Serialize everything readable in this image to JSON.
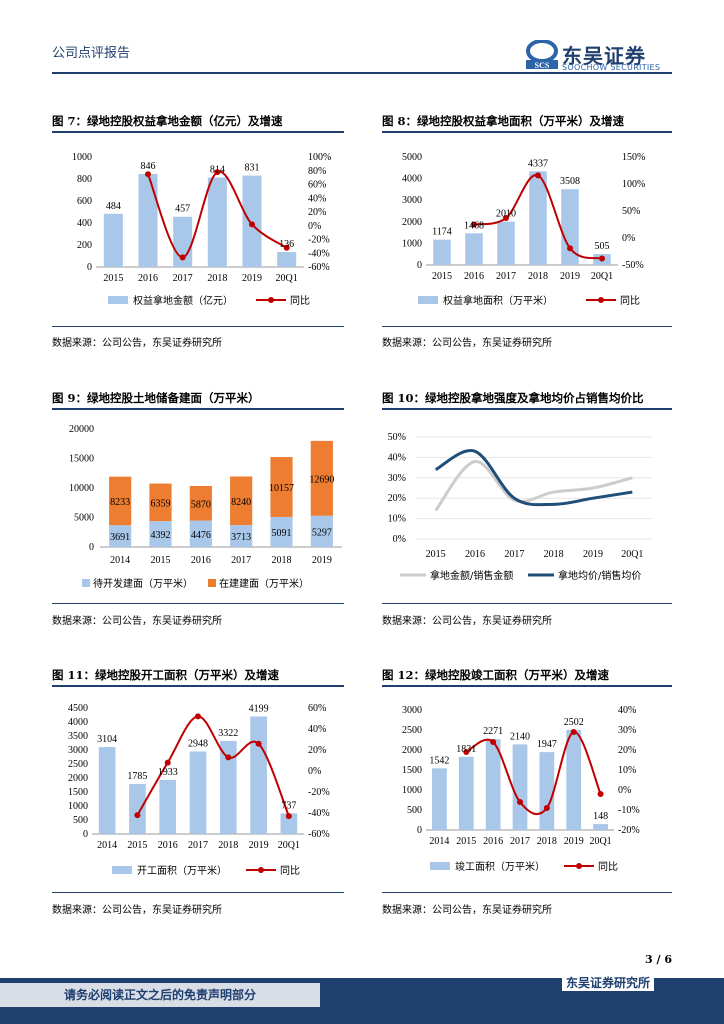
{
  "header": {
    "report_type": "公司点评报告",
    "brand_cn": "东吴证券",
    "brand_en": "SOOCHOW SECURITIES",
    "logo_abbr": "SCS"
  },
  "figures": [
    {
      "title": "图 7：绿地控股权益拿地金额（亿元）及增速",
      "source": "数据来源：公司公告，东吴证券研究所",
      "chart_data": {
        "type": "bar",
        "categories": [
          "2015",
          "2016",
          "2017",
          "2018",
          "2019",
          "20Q1"
        ],
        "series": [
          {
            "name": "权益拿地金额（亿元）",
            "type": "bar",
            "values": [
              484,
              846,
              457,
              814,
              831,
              136
            ]
          },
          {
            "name": "同比",
            "type": "line",
            "values": [
              null,
              75,
              -46,
              78,
              2,
              -32
            ]
          }
        ],
        "ylim": [
          0,
          1000
        ],
        "yticks": [
          0,
          200,
          400,
          600,
          800,
          1000
        ],
        "y2lim": [
          -60,
          100
        ],
        "y2ticks": [
          -60,
          -40,
          -20,
          0,
          20,
          40,
          60,
          80,
          100
        ],
        "data_labels": [
          "484",
          "846",
          "457",
          "814",
          "831",
          "136"
        ]
      }
    },
    {
      "title": "图 8：绿地控股权益拿地面积（万平米）及增速",
      "source": "数据来源：公司公告，东吴证券研究所",
      "chart_data": {
        "type": "bar",
        "categories": [
          "2015",
          "2016",
          "2017",
          "2018",
          "2019",
          "20Q1"
        ],
        "series": [
          {
            "name": "权益拿地面积（万平米）",
            "type": "bar",
            "values": [
              1174,
              1468,
              2010,
              4337,
              3508,
              505
            ]
          },
          {
            "name": "同比",
            "type": "line",
            "values": [
              null,
              25,
              37,
              116,
              -19,
              -38
            ]
          }
        ],
        "ylim": [
          0,
          5000
        ],
        "yticks": [
          0,
          1000,
          2000,
          3000,
          4000,
          5000
        ],
        "y2lim": [
          -50,
          150
        ],
        "y2ticks": [
          -50,
          0,
          50,
          100,
          150
        ],
        "data_labels": [
          "1174",
          "1468",
          "2010",
          "4337",
          "3508",
          "505"
        ]
      }
    },
    {
      "title": "图 9：绿地控股土地储备建面（万平米）",
      "source": "数据来源：公司公告，东吴证券研究所",
      "chart_data": {
        "type": "stacked-bar",
        "categories": [
          "2014",
          "2015",
          "2016",
          "2017",
          "2018",
          "2019"
        ],
        "series": [
          {
            "name": "待开发建面（万平米）",
            "values": [
              3691,
              4392,
              4476,
              3713,
              5091,
              5297
            ]
          },
          {
            "name": "在建建面（万平米）",
            "values": [
              8233,
              6359,
              5870,
              8240,
              10157,
              12690
            ]
          }
        ],
        "ylim": [
          0,
          20000
        ],
        "yticks": [
          0,
          5000,
          10000,
          15000,
          20000
        ]
      }
    },
    {
      "title": "图 10：绿地控股拿地强度及拿地均价占销售均价比",
      "source": "数据来源：公司公告，东吴证券研究所",
      "chart_data": {
        "type": "line",
        "categories": [
          "2015",
          "2016",
          "2017",
          "2018",
          "2019",
          "20Q1"
        ],
        "series": [
          {
            "name": "拿地金额/销售金额",
            "values": [
              14,
              38,
              19,
              23,
              25,
              30
            ]
          },
          {
            "name": "拿地均价/销售均价",
            "values": [
              34,
              43,
              20,
              17,
              20,
              23
            ]
          }
        ],
        "ylim": [
          0,
          50
        ],
        "yticks": [
          0,
          10,
          20,
          30,
          40,
          50
        ]
      }
    },
    {
      "title": "图 11：绿地控股开工面积（万平米）及增速",
      "source": "数据来源：公司公告，东吴证券研究所",
      "chart_data": {
        "type": "bar",
        "categories": [
          "2014",
          "2015",
          "2016",
          "2017",
          "2018",
          "2019",
          "20Q1"
        ],
        "series": [
          {
            "name": "开工面积（万平米）",
            "type": "bar",
            "values": [
              3104,
              1785,
              1933,
              2948,
              3322,
              4199,
              737
            ]
          },
          {
            "name": "同比",
            "type": "line",
            "values": [
              null,
              -42,
              8,
              52,
              13,
              26,
              -43
            ]
          }
        ],
        "ylim": [
          0,
          4500
        ],
        "yticks": [
          0,
          500,
          1000,
          1500,
          2000,
          2500,
          3000,
          3500,
          4000,
          4500
        ],
        "y2lim": [
          -60,
          60
        ],
        "y2ticks": [
          -60,
          -40,
          -20,
          0,
          20,
          40,
          60
        ],
        "data_labels": [
          "3104",
          "1785",
          "1933",
          "2948",
          "3322",
          "4199",
          "737"
        ]
      }
    },
    {
      "title": "图 12：绿地控股竣工面积（万平米）及增速",
      "source": "数据来源：公司公告，东吴证券研究所",
      "chart_data": {
        "type": "bar",
        "categories": [
          "2014",
          "2015",
          "2016",
          "2017",
          "2018",
          "2019",
          "20Q1"
        ],
        "series": [
          {
            "name": "竣工面积（万平米）",
            "type": "bar",
            "values": [
              1542,
              1831,
              2271,
              2140,
              1947,
              2502,
              148
            ]
          },
          {
            "name": "同比",
            "type": "line",
            "values": [
              null,
              19,
              24,
              -6,
              -9,
              29,
              -2
            ]
          }
        ],
        "ylim": [
          0,
          3000
        ],
        "yticks": [
          0,
          500,
          1000,
          1500,
          2000,
          2500,
          3000
        ],
        "y2lim": [
          -20,
          40
        ],
        "y2ticks": [
          -20,
          -10,
          0,
          10,
          20,
          30,
          40
        ],
        "data_labels": [
          "1542",
          "1831",
          "2271",
          "2140",
          "1947",
          "2502",
          "148"
        ]
      }
    }
  ],
  "footer": {
    "page_number": "3 / 6",
    "disclaimer": "请务必阅读正文之后的免责声明部分",
    "institute": "东吴证券研究所"
  },
  "colors": {
    "navy": "#1f3f6e",
    "bar_blue": "#a9c8e9",
    "orange": "#ed7d31",
    "line_red": "#c00000",
    "gray_line": "#cccccc",
    "dark_blue": "#1f4e79"
  }
}
